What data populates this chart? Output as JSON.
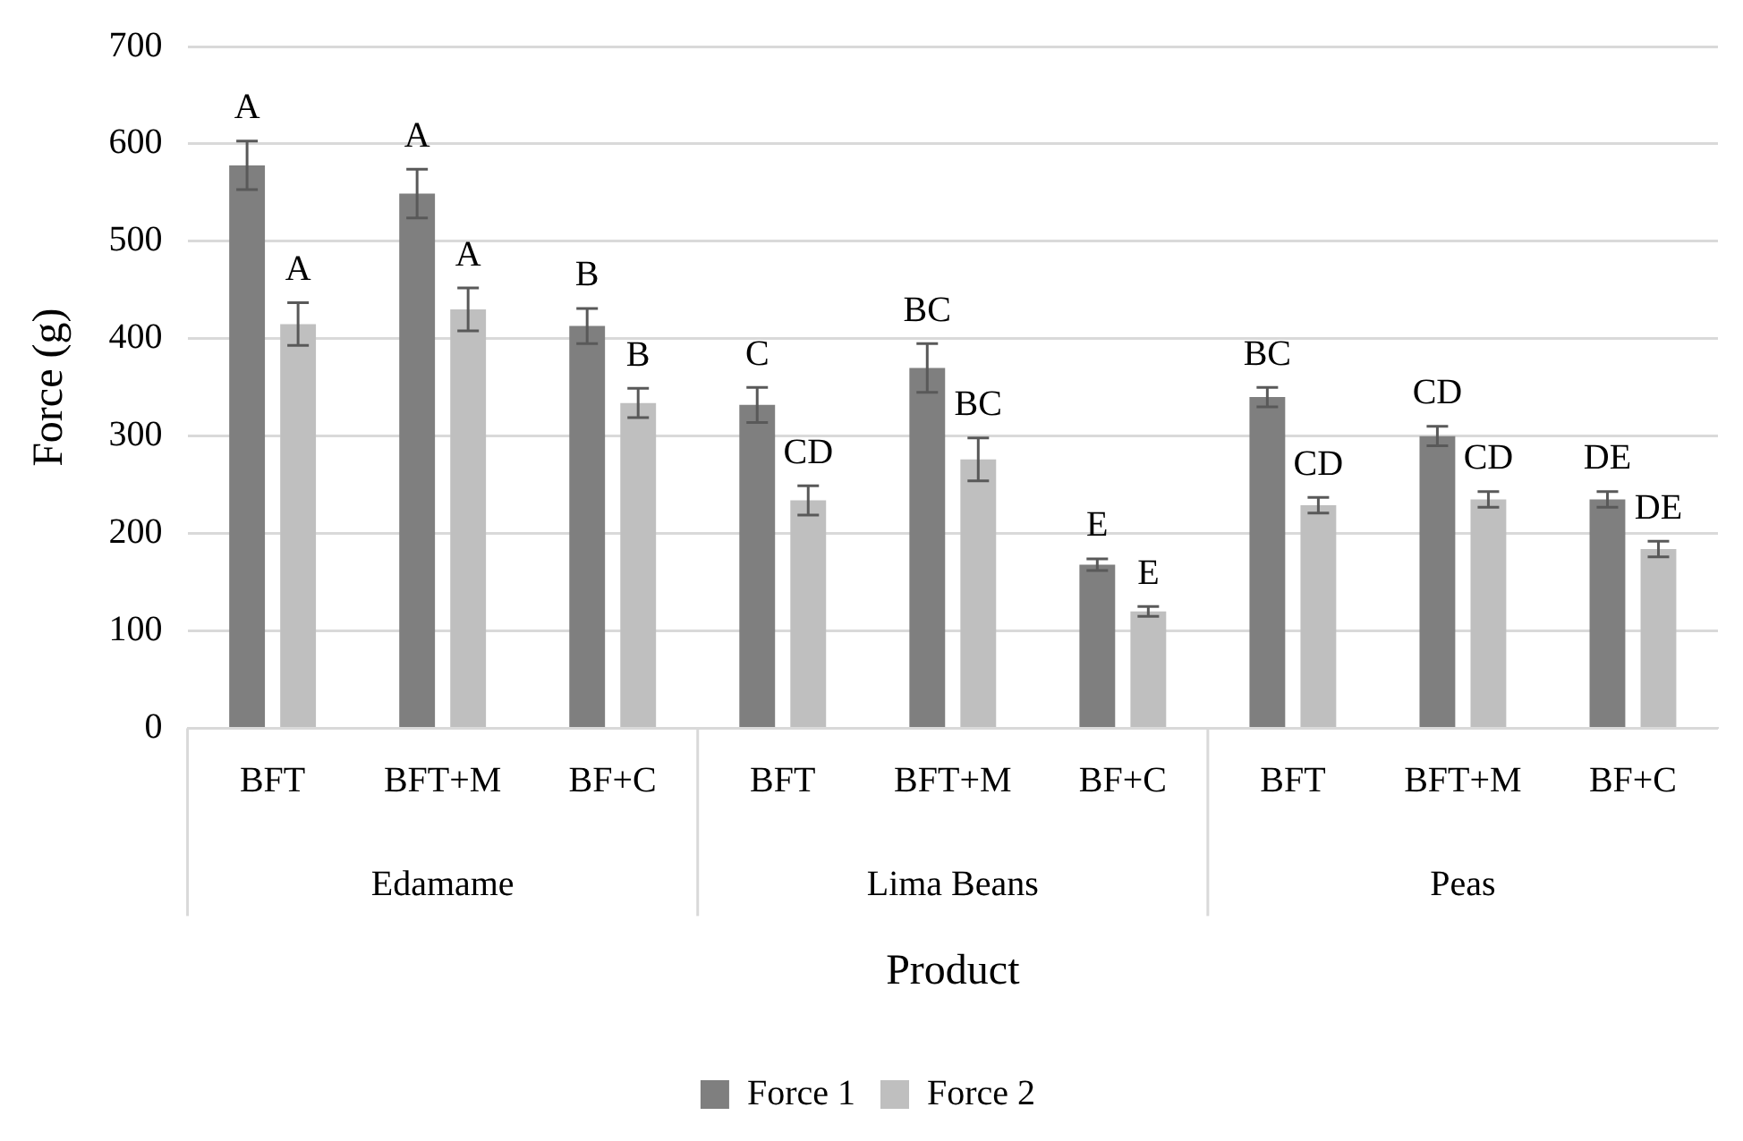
{
  "chart_data": {
    "type": "bar",
    "xlabel": "Product",
    "ylabel": "Force (g)",
    "categories": [
      "BFT",
      "BFT+M",
      "BF+C",
      "BFT",
      "BFT+M",
      "BF+C",
      "BFT",
      "BFT+M",
      "BF+C"
    ],
    "annotations": [
      "Edamame",
      "Lima Beans",
      "Peas"
    ],
    "series": [
      {
        "name": "Force 1",
        "color": "#7f7f7f",
        "values": [
          578,
          549,
          413,
          332,
          370,
          168,
          340,
          300,
          235
        ],
        "errors": [
          25,
          25,
          18,
          18,
          25,
          6,
          10,
          10,
          8
        ],
        "value_labels": [
          "A",
          "A",
          "B",
          "C",
          "BC",
          "E",
          "BC",
          "CD",
          "DE"
        ]
      },
      {
        "name": "Force 2",
        "color": "#bfbfbf",
        "values": [
          415,
          430,
          334,
          234,
          276,
          120,
          229,
          235,
          184
        ],
        "errors": [
          22,
          22,
          15,
          15,
          22,
          5,
          8,
          8,
          8
        ],
        "value_labels": [
          "A",
          "A",
          "B",
          "CD",
          "BC",
          "E",
          "CD",
          "CD",
          "DE"
        ]
      }
    ],
    "ylim": [
      0,
      700
    ],
    "yticks": [
      0,
      100,
      200,
      300,
      400,
      500,
      600,
      700
    ],
    "grid": "y",
    "legend": "bottom"
  }
}
